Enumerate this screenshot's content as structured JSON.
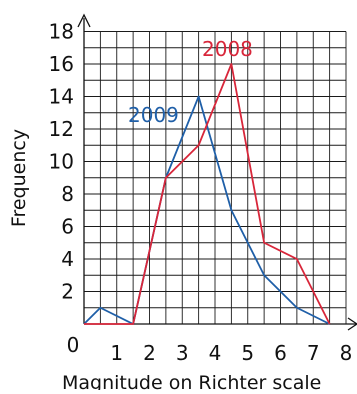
{
  "chart_data": {
    "type": "line",
    "xlabel": "Magnitude on Richter scale",
    "ylabel": "Frequency",
    "xlim": [
      0,
      8
    ],
    "ylim": [
      0,
      18
    ],
    "x_ticks": [
      0,
      1,
      2,
      3,
      4,
      5,
      6,
      7,
      8
    ],
    "y_ticks": [
      2,
      4,
      6,
      8,
      10,
      12,
      14,
      16,
      18
    ],
    "grid": true,
    "series": [
      {
        "name": "2009",
        "color": "#1f5fa8",
        "x": [
          0,
          0.5,
          1.5,
          2.5,
          3.5,
          4.5,
          5.5,
          6.5,
          7.5
        ],
        "y": [
          0,
          1,
          0,
          9,
          14,
          7,
          3,
          1,
          0
        ]
      },
      {
        "name": "2008",
        "color": "#d8263a",
        "x": [
          0,
          0.5,
          1.5,
          2.5,
          3.5,
          4.5,
          5.5,
          6.5,
          7.5
        ],
        "y": [
          0,
          0,
          0,
          9,
          11,
          16,
          5,
          4,
          0
        ]
      }
    ]
  }
}
